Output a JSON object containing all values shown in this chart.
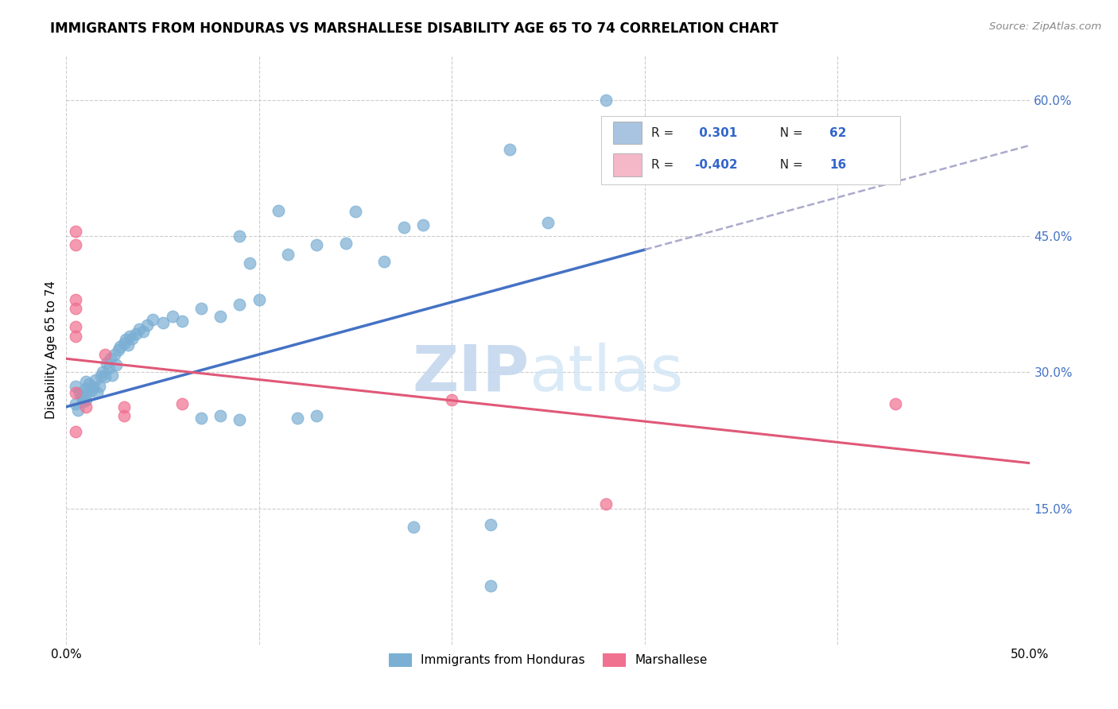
{
  "title": "IMMIGRANTS FROM HONDURAS VS MARSHALLESE DISABILITY AGE 65 TO 74 CORRELATION CHART",
  "source": "Source: ZipAtlas.com",
  "ylabel": "Disability Age 65 to 74",
  "y_ticks": [
    0.15,
    0.3,
    0.45,
    0.6
  ],
  "y_tick_labels": [
    "15.0%",
    "30.0%",
    "45.0%",
    "60.0%"
  ],
  "x_ticks": [
    0.0,
    0.1,
    0.2,
    0.3,
    0.4,
    0.5
  ],
  "blue_color": "#7bafd4",
  "pink_color": "#f07090",
  "blue_scatter": [
    [
      0.005,
      0.285
    ],
    [
      0.007,
      0.278
    ],
    [
      0.008,
      0.272
    ],
    [
      0.009,
      0.268
    ],
    [
      0.01,
      0.29
    ],
    [
      0.01,
      0.282
    ],
    [
      0.01,
      0.276
    ],
    [
      0.01,
      0.27
    ],
    [
      0.012,
      0.287
    ],
    [
      0.013,
      0.28
    ],
    [
      0.014,
      0.284
    ],
    [
      0.015,
      0.292
    ],
    [
      0.016,
      0.278
    ],
    [
      0.017,
      0.285
    ],
    [
      0.018,
      0.296
    ],
    [
      0.019,
      0.3
    ],
    [
      0.02,
      0.295
    ],
    [
      0.021,
      0.31
    ],
    [
      0.022,
      0.305
    ],
    [
      0.023,
      0.315
    ],
    [
      0.024,
      0.297
    ],
    [
      0.025,
      0.32
    ],
    [
      0.026,
      0.308
    ],
    [
      0.027,
      0.325
    ],
    [
      0.028,
      0.328
    ],
    [
      0.03,
      0.332
    ],
    [
      0.031,
      0.336
    ],
    [
      0.032,
      0.33
    ],
    [
      0.033,
      0.34
    ],
    [
      0.034,
      0.337
    ],
    [
      0.036,
      0.342
    ],
    [
      0.038,
      0.348
    ],
    [
      0.04,
      0.345
    ],
    [
      0.042,
      0.352
    ],
    [
      0.045,
      0.358
    ],
    [
      0.05,
      0.355
    ],
    [
      0.055,
      0.362
    ],
    [
      0.06,
      0.356
    ],
    [
      0.07,
      0.37
    ],
    [
      0.08,
      0.362
    ],
    [
      0.09,
      0.375
    ],
    [
      0.1,
      0.38
    ],
    [
      0.005,
      0.265
    ],
    [
      0.006,
      0.258
    ],
    [
      0.07,
      0.25
    ],
    [
      0.08,
      0.252
    ],
    [
      0.09,
      0.248
    ],
    [
      0.12,
      0.25
    ],
    [
      0.13,
      0.252
    ],
    [
      0.18,
      0.13
    ],
    [
      0.22,
      0.132
    ],
    [
      0.22,
      0.065
    ],
    [
      0.09,
      0.45
    ],
    [
      0.095,
      0.42
    ],
    [
      0.11,
      0.478
    ],
    [
      0.115,
      0.43
    ],
    [
      0.13,
      0.44
    ],
    [
      0.145,
      0.442
    ],
    [
      0.15,
      0.477
    ],
    [
      0.165,
      0.422
    ],
    [
      0.175,
      0.46
    ],
    [
      0.185,
      0.462
    ],
    [
      0.25,
      0.465
    ],
    [
      0.23,
      0.545
    ],
    [
      0.28,
      0.6
    ]
  ],
  "pink_scatter": [
    [
      0.005,
      0.455
    ],
    [
      0.005,
      0.44
    ],
    [
      0.005,
      0.38
    ],
    [
      0.005,
      0.37
    ],
    [
      0.005,
      0.35
    ],
    [
      0.005,
      0.34
    ],
    [
      0.005,
      0.278
    ],
    [
      0.01,
      0.262
    ],
    [
      0.02,
      0.32
    ],
    [
      0.03,
      0.262
    ],
    [
      0.03,
      0.252
    ],
    [
      0.06,
      0.265
    ],
    [
      0.005,
      0.235
    ],
    [
      0.2,
      0.27
    ],
    [
      0.28,
      0.155
    ],
    [
      0.43,
      0.265
    ]
  ],
  "blue_line_solid": [
    [
      0.0,
      0.262
    ],
    [
      0.3,
      0.435
    ]
  ],
  "blue_line_dash": [
    [
      0.3,
      0.435
    ],
    [
      0.5,
      0.55
    ]
  ],
  "pink_line": [
    [
      0.0,
      0.315
    ],
    [
      0.5,
      0.2
    ]
  ],
  "watermark_zip": "ZIP",
  "watermark_atlas": "atlas",
  "xlim": [
    0.0,
    0.5
  ],
  "ylim": [
    0.0,
    0.65
  ],
  "figsize": [
    14.06,
    8.92
  ],
  "dpi": 100
}
